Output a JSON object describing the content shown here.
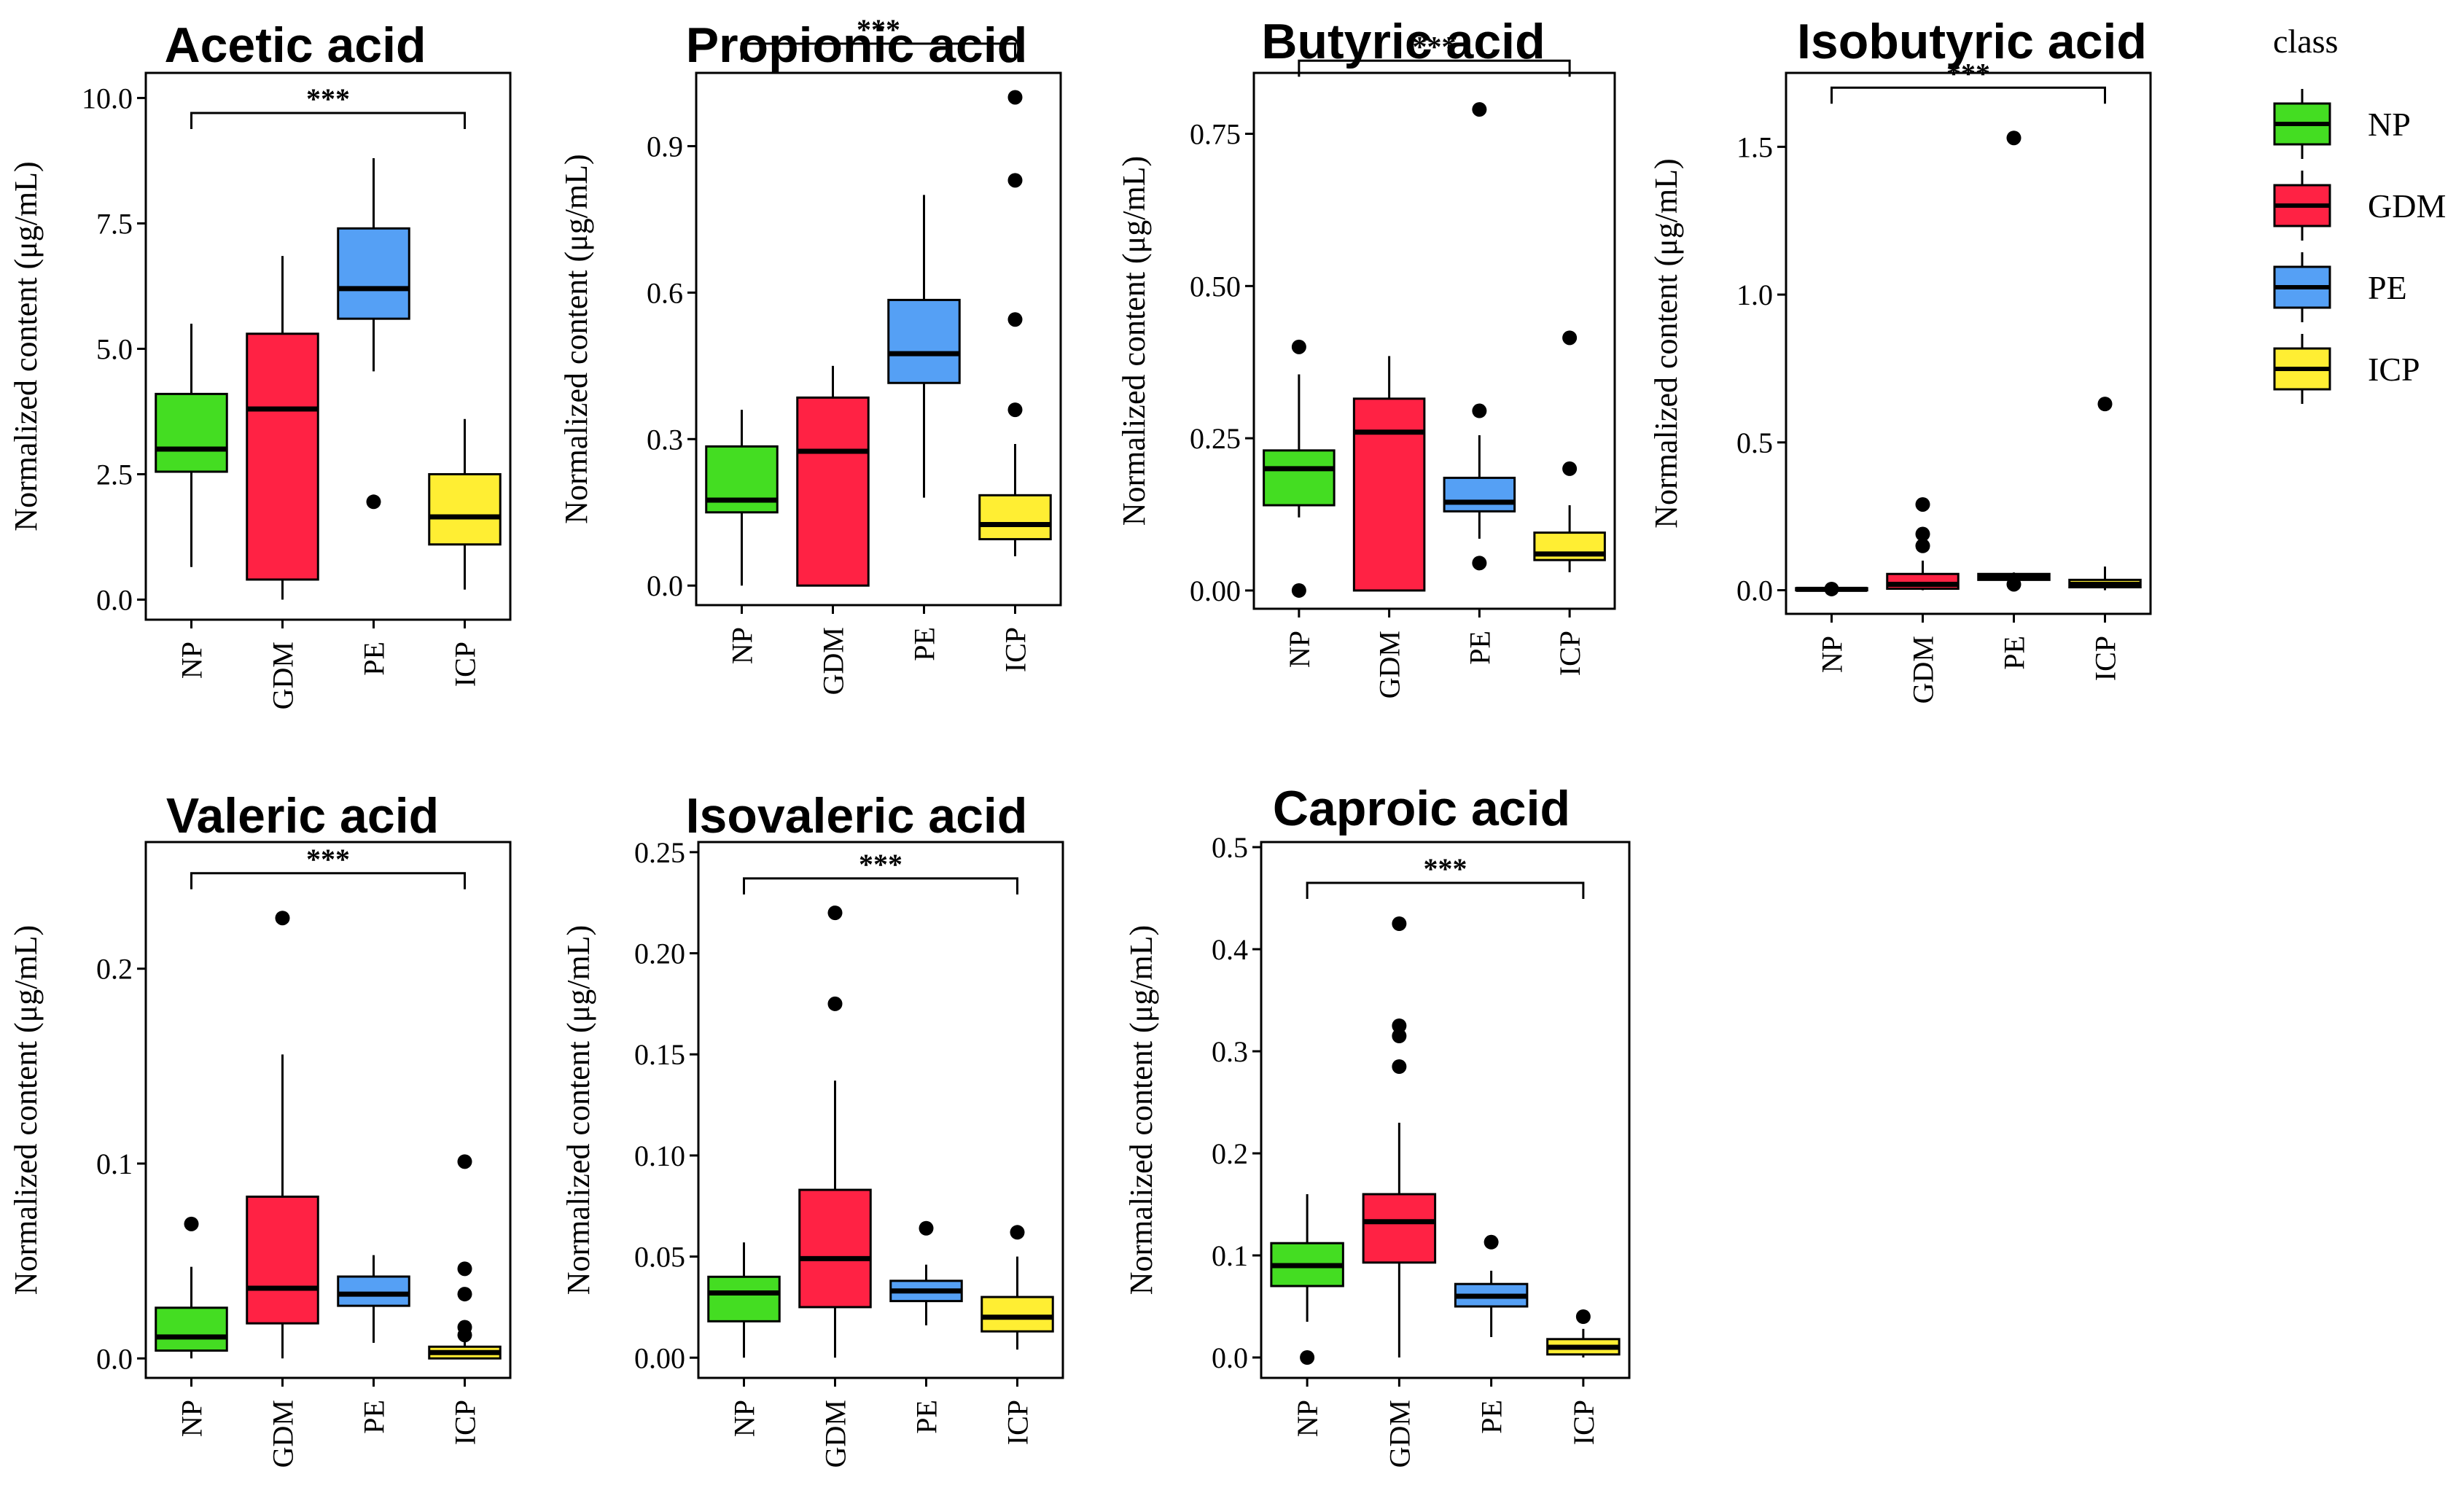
{
  "legend": {
    "title": "class",
    "items": [
      {
        "name": "NP",
        "color": "#44dd22"
      },
      {
        "name": "GDM",
        "color": "#ff2244"
      },
      {
        "name": "PE",
        "color": "#55a0f5"
      },
      {
        "name": "ICP",
        "color": "#ffee33"
      }
    ]
  },
  "chart_data": [
    {
      "type": "box",
      "title": "Acetic acid",
      "ylabel": "Normalized content (μg/mL)",
      "categories": [
        "NP",
        "GDM",
        "PE",
        "ICP"
      ],
      "ylim": [
        -0.4,
        10.5
      ],
      "yticks": [
        0.0,
        2.5,
        5.0,
        7.5,
        10.0
      ],
      "tick_labels": [
        "0.0",
        "2.5",
        "5.0",
        "7.5",
        "10.0"
      ],
      "significance": {
        "label": "***",
        "from": "NP",
        "to": "ICP",
        "y": 9.7
      },
      "boxes": [
        {
          "group": "NP",
          "whisker_low": 0.65,
          "q1": 2.55,
          "median": 3.0,
          "q3": 4.1,
          "whisker_high": 5.5,
          "outliers": []
        },
        {
          "group": "GDM",
          "whisker_low": 0.0,
          "q1": 0.4,
          "median": 3.8,
          "q3": 5.3,
          "whisker_high": 6.85,
          "outliers": []
        },
        {
          "group": "PE",
          "whisker_low": 4.55,
          "q1": 5.6,
          "median": 6.2,
          "q3": 7.4,
          "whisker_high": 8.8,
          "outliers": [
            1.95
          ]
        },
        {
          "group": "ICP",
          "whisker_low": 0.2,
          "q1": 1.1,
          "median": 1.65,
          "q3": 2.5,
          "whisker_high": 3.6,
          "outliers": []
        }
      ]
    },
    {
      "type": "box",
      "title": "Propionic acid",
      "ylabel": "Normalized content (μg/mL)",
      "categories": [
        "NP",
        "GDM",
        "PE",
        "ICP"
      ],
      "ylim": [
        -0.04,
        1.05
      ],
      "yticks": [
        0.0,
        0.3,
        0.6,
        0.9
      ],
      "tick_labels": [
        "0.0",
        "0.3",
        "0.6",
        "0.9"
      ],
      "significance": {
        "label": "***",
        "from": "NP",
        "to": "ICP",
        "y": 1.11
      },
      "boxes": [
        {
          "group": "NP",
          "whisker_low": 0.0,
          "q1": 0.15,
          "median": 0.175,
          "q3": 0.285,
          "whisker_high": 0.36,
          "outliers": []
        },
        {
          "group": "GDM",
          "whisker_low": 0.0,
          "q1": 0.0,
          "median": 0.275,
          "q3": 0.385,
          "whisker_high": 0.45,
          "outliers": []
        },
        {
          "group": "PE",
          "whisker_low": 0.18,
          "q1": 0.415,
          "median": 0.475,
          "q3": 0.585,
          "whisker_high": 0.8,
          "outliers": []
        },
        {
          "group": "ICP",
          "whisker_low": 0.06,
          "q1": 0.095,
          "median": 0.125,
          "q3": 0.185,
          "whisker_high": 0.29,
          "outliers": [
            0.36,
            0.545,
            0.83,
            1.0
          ]
        }
      ]
    },
    {
      "type": "box",
      "title": "Butyric acid",
      "ylabel": "Normalized content (μg/mL)",
      "categories": [
        "NP",
        "GDM",
        "PE",
        "ICP"
      ],
      "ylim": [
        -0.03,
        0.85
      ],
      "yticks": [
        0.0,
        0.25,
        0.5,
        0.75
      ],
      "tick_labels": [
        "0.00",
        "0.25",
        "0.50",
        "0.75"
      ],
      "significance": {
        "label": "***",
        "from": "NP",
        "to": "ICP",
        "y": 0.87
      },
      "boxes": [
        {
          "group": "NP",
          "whisker_low": 0.12,
          "q1": 0.14,
          "median": 0.2,
          "q3": 0.23,
          "whisker_high": 0.355,
          "outliers": [
            0.0,
            0.4
          ]
        },
        {
          "group": "GDM",
          "whisker_low": 0.0,
          "q1": 0.0,
          "median": 0.26,
          "q3": 0.315,
          "whisker_high": 0.385,
          "outliers": []
        },
        {
          "group": "PE",
          "whisker_low": 0.085,
          "q1": 0.13,
          "median": 0.145,
          "q3": 0.185,
          "whisker_high": 0.255,
          "outliers": [
            0.045,
            0.295,
            0.79
          ]
        },
        {
          "group": "ICP",
          "whisker_low": 0.03,
          "q1": 0.05,
          "median": 0.06,
          "q3": 0.095,
          "whisker_high": 0.14,
          "outliers": [
            0.2,
            0.415
          ]
        }
      ]
    },
    {
      "type": "box",
      "title": "Isobutyric acid",
      "ylabel": "Normalized content (μg/mL)",
      "categories": [
        "NP",
        "GDM",
        "PE",
        "ICP"
      ],
      "ylim": [
        -0.08,
        1.75
      ],
      "yticks": [
        0.0,
        0.5,
        1.0,
        1.5
      ],
      "tick_labels": [
        "0.0",
        "0.5",
        "1.0",
        "1.5"
      ],
      "significance": {
        "label": "***",
        "from": "NP",
        "to": "ICP",
        "y": 1.7
      },
      "boxes": [
        {
          "group": "NP",
          "whisker_low": 0.0,
          "q1": 0.0,
          "median": 0.003,
          "q3": 0.007,
          "whisker_high": 0.01,
          "outliers": [
            0.004
          ]
        },
        {
          "group": "GDM",
          "whisker_low": 0.0,
          "q1": 0.005,
          "median": 0.02,
          "q3": 0.055,
          "whisker_high": 0.1,
          "outliers": [
            0.15,
            0.19,
            0.29
          ]
        },
        {
          "group": "PE",
          "whisker_low": 0.03,
          "q1": 0.035,
          "median": 0.045,
          "q3": 0.055,
          "whisker_high": 0.06,
          "outliers": [
            0.02,
            1.53
          ]
        },
        {
          "group": "ICP",
          "whisker_low": 0.0,
          "q1": 0.01,
          "median": 0.02,
          "q3": 0.035,
          "whisker_high": 0.08,
          "outliers": [
            0.63
          ]
        }
      ]
    },
    {
      "type": "box",
      "title": "Valeric acid",
      "ylabel": "Normalized content (μg/mL)",
      "categories": [
        "NP",
        "GDM",
        "PE",
        "ICP"
      ],
      "ylim": [
        -0.01,
        0.265
      ],
      "yticks": [
        0.0,
        0.1,
        0.2
      ],
      "tick_labels": [
        "0.0",
        "0.1",
        "0.2"
      ],
      "significance": {
        "label": "***",
        "from": "NP",
        "to": "ICP",
        "y": 0.249
      },
      "boxes": [
        {
          "group": "NP",
          "whisker_low": 0.0,
          "q1": 0.004,
          "median": 0.011,
          "q3": 0.026,
          "whisker_high": 0.047,
          "outliers": [
            0.069
          ]
        },
        {
          "group": "GDM",
          "whisker_low": 0.0,
          "q1": 0.018,
          "median": 0.036,
          "q3": 0.083,
          "whisker_high": 0.156,
          "outliers": [
            0.226
          ]
        },
        {
          "group": "PE",
          "whisker_low": 0.008,
          "q1": 0.027,
          "median": 0.033,
          "q3": 0.042,
          "whisker_high": 0.053,
          "outliers": []
        },
        {
          "group": "ICP",
          "whisker_low": 0.0,
          "q1": 0.0,
          "median": 0.003,
          "q3": 0.006,
          "whisker_high": 0.01,
          "outliers": [
            0.012,
            0.016,
            0.033,
            0.046,
            0.101
          ]
        }
      ]
    },
    {
      "type": "box",
      "title": "Isovaleric acid",
      "ylabel": "Normalized content (μg/mL)",
      "categories": [
        "NP",
        "GDM",
        "PE",
        "ICP"
      ],
      "ylim": [
        -0.01,
        0.255
      ],
      "yticks": [
        0.0,
        0.05,
        0.1,
        0.15,
        0.2,
        0.25
      ],
      "tick_labels": [
        "0.00",
        "0.05",
        "0.10",
        "0.15",
        "0.20",
        "0.25"
      ],
      "significance": {
        "label": "***",
        "from": "NP",
        "to": "ICP",
        "y": 0.237
      },
      "boxes": [
        {
          "group": "NP",
          "whisker_low": 0.0,
          "q1": 0.018,
          "median": 0.032,
          "q3": 0.04,
          "whisker_high": 0.057,
          "outliers": []
        },
        {
          "group": "GDM",
          "whisker_low": 0.0,
          "q1": 0.025,
          "median": 0.049,
          "q3": 0.083,
          "whisker_high": 0.137,
          "outliers": [
            0.175,
            0.22
          ]
        },
        {
          "group": "PE",
          "whisker_low": 0.016,
          "q1": 0.028,
          "median": 0.033,
          "q3": 0.038,
          "whisker_high": 0.046,
          "outliers": [
            0.064
          ]
        },
        {
          "group": "ICP",
          "whisker_low": 0.004,
          "q1": 0.013,
          "median": 0.02,
          "q3": 0.03,
          "whisker_high": 0.05,
          "outliers": [
            0.062
          ]
        }
      ]
    },
    {
      "type": "box",
      "title": "Caproic acid",
      "ylabel": "Normalized content (μg/mL)",
      "categories": [
        "NP",
        "GDM",
        "PE",
        "ICP"
      ],
      "ylim": [
        -0.02,
        0.505
      ],
      "yticks": [
        0.0,
        0.1,
        0.2,
        0.3,
        0.4,
        0.5
      ],
      "tick_labels": [
        "0.0",
        "0.1",
        "0.2",
        "0.3",
        "0.4",
        "0.5"
      ],
      "significance": {
        "label": "***",
        "from": "NP",
        "to": "ICP",
        "y": 0.465
      },
      "boxes": [
        {
          "group": "NP",
          "whisker_low": 0.035,
          "q1": 0.07,
          "median": 0.09,
          "q3": 0.112,
          "whisker_high": 0.16,
          "outliers": [
            0.0
          ]
        },
        {
          "group": "GDM",
          "whisker_low": 0.0,
          "q1": 0.093,
          "median": 0.133,
          "q3": 0.16,
          "whisker_high": 0.23,
          "outliers": [
            0.285,
            0.315,
            0.325,
            0.425
          ]
        },
        {
          "group": "PE",
          "whisker_low": 0.02,
          "q1": 0.05,
          "median": 0.06,
          "q3": 0.072,
          "whisker_high": 0.085,
          "outliers": [
            0.113
          ]
        },
        {
          "group": "ICP",
          "whisker_low": 0.0,
          "q1": 0.003,
          "median": 0.01,
          "q3": 0.018,
          "whisker_high": 0.028,
          "outliers": [
            0.04
          ]
        }
      ]
    }
  ]
}
